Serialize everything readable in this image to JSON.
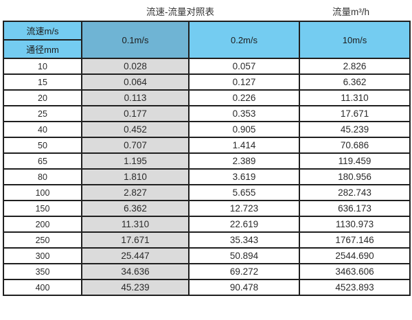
{
  "page": {
    "title_left": "流速-流量对照表",
    "title_right": "流量m³/h"
  },
  "table": {
    "corner_top": "流速m/s",
    "corner_bottom": "通径mm",
    "velocity_headers": [
      "0.1m/s",
      "0.2m/s",
      "10m/s"
    ],
    "rows": [
      {
        "dn": "10",
        "values": [
          "0.028",
          "0.057",
          "2.826"
        ]
      },
      {
        "dn": "15",
        "values": [
          "0.064",
          "0.127",
          "6.362"
        ]
      },
      {
        "dn": "20",
        "values": [
          "0.113",
          "0.226",
          "11.310"
        ]
      },
      {
        "dn": "25",
        "values": [
          "0.177",
          "0.353",
          "17.671"
        ]
      },
      {
        "dn": "40",
        "values": [
          "0.452",
          "0.905",
          "45.239"
        ]
      },
      {
        "dn": "50",
        "values": [
          "0.707",
          "1.414",
          "70.686"
        ]
      },
      {
        "dn": "65",
        "values": [
          "1.195",
          "2.389",
          "119.459"
        ]
      },
      {
        "dn": "80",
        "values": [
          "1.810",
          "3.619",
          "180.956"
        ]
      },
      {
        "dn": "100",
        "values": [
          "2.827",
          "5.655",
          "282.743"
        ]
      },
      {
        "dn": "150",
        "values": [
          "6.362",
          "12.723",
          "636.173"
        ]
      },
      {
        "dn": "200",
        "values": [
          "11.310",
          "22.619",
          "1130.973"
        ]
      },
      {
        "dn": "250",
        "values": [
          "17.671",
          "35.343",
          "1767.146"
        ]
      },
      {
        "dn": "300",
        "values": [
          "25.447",
          "50.894",
          "2544.690"
        ]
      },
      {
        "dn": "350",
        "values": [
          "34.636",
          "69.272",
          "3463.606"
        ]
      },
      {
        "dn": "400",
        "values": [
          "45.239",
          "90.478",
          "4523.893"
        ]
      }
    ]
  },
  "colors": {
    "header_blue": "#74CCF1",
    "header_col2_blue": "#6FB4D4",
    "col2_gray": "#DBDBDB",
    "border": "#1F1F1F"
  },
  "chart_data": {
    "type": "table",
    "title": "流速-流量对照表",
    "right_label": "流量m³/h",
    "row_axis_label": "通径mm",
    "column_axis_label": "流速m/s",
    "columns": [
      "0.1m/s",
      "0.2m/s",
      "10m/s"
    ],
    "diameters_mm": [
      10,
      15,
      20,
      25,
      40,
      50,
      65,
      80,
      100,
      150,
      200,
      250,
      300,
      350,
      400
    ],
    "series": [
      {
        "name": "0.1m/s",
        "values": [
          0.028,
          0.064,
          0.113,
          0.177,
          0.452,
          0.707,
          1.195,
          1.81,
          2.827,
          6.362,
          11.31,
          17.671,
          25.447,
          34.636,
          45.239
        ]
      },
      {
        "name": "0.2m/s",
        "values": [
          0.057,
          0.127,
          0.226,
          0.353,
          0.905,
          1.414,
          2.389,
          3.619,
          5.655,
          12.723,
          22.619,
          35.343,
          50.894,
          69.272,
          90.478
        ]
      },
      {
        "name": "10m/s",
        "values": [
          2.826,
          6.362,
          11.31,
          17.671,
          45.239,
          70.686,
          119.459,
          180.956,
          282.743,
          636.173,
          1130.973,
          1767.146,
          2544.69,
          3463.606,
          4523.893
        ]
      }
    ]
  }
}
